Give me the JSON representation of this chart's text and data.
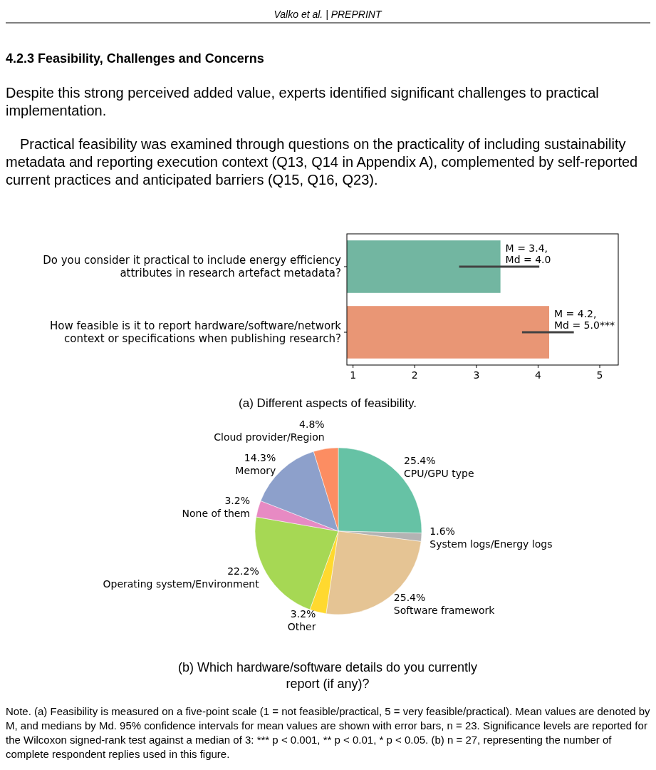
{
  "chart_data": [
    {
      "type": "bar",
      "orientation": "horizontal",
      "categories": [
        "Do you consider it practical to include energy efficiency attributes in research artefact metadata?",
        "How feasible is it to report hardware/software/network context or specifications when publishing research?"
      ],
      "values": [
        3.39,
        4.18
      ],
      "colors": [
        "#72b6a1",
        "#e99675"
      ],
      "errors": [
        [
          2.72,
          4.02
        ],
        [
          3.74,
          4.58
        ]
      ],
      "xlim": [
        0.9,
        5.3
      ],
      "xticks": [
        1,
        2,
        3,
        4,
        5
      ],
      "xlabel": "(a) Different aspects of feasibility.",
      "annotations": [
        "Valko et al.  |  PREPRINT",
        "4.2.3  Feasibility, Challenges and Concerns",
        "Despite this strong perceived added value, experts identified significant challenges to practical implementation.",
        "Practical feasibility was examined through questions on the practicality of including sustainability metadata and reporting execution context (Q13, Q14 in Appendix A), complemented by self-reported current practices and anticipated barriers (Q15, Q16, Q23).",
        {
          "text": "M = 3.4,\nMd = 4.0",
          "x": 3.39,
          "y": "Do you consider it practical to include energy efficiency attributes in research artefact metadata?"
        },
        {
          "text": "M = 4.2,\nMd = 5.0***",
          "x": 4.18,
          "y": "How feasible is it to report hardware/software/network context or specifications when publishing research?"
        }
      ]
    },
    {
      "type": "pie",
      "categories": [
        "CPU/GPU type",
        "System logs/Energy logs",
        "Software framework",
        "Other",
        "Operating system/Environment",
        "None of them",
        "Memory",
        "Cloud provider/Region"
      ],
      "values": [
        25.4,
        1.6,
        25.4,
        3.2,
        22.2,
        3.2,
        14.3,
        4.8
      ],
      "value_labels": [
        "25.4%",
        "1.6%",
        "25.4%",
        "3.2%",
        "22.2%",
        "3.2%",
        "14.3%",
        "4.8%"
      ],
      "colors": [
        "#66c2a5",
        "#b3b3b3",
        "#e5c494",
        "#ffd92f",
        "#a6d854",
        "#e78ac3",
        "#8da0cb",
        "#fc8d62"
      ],
      "xlabel": "(b) Which hardware/software details do you currently report (if any)?",
      "annotations": [
        "Note. (a) Feasibility is measured on a five-point scale (1 = not feasible/practical, 5 = very feasible/practical). Mean values are denoted by M, and medians by Md. 95% confidence intervals for mean values are shown with error bars, n = 23. Significance levels are reported for the Wilcoxon signed-rank test against a median of 3: *** p < 0.001, ** p < 0.01, * p < 0.05. (b) n = 27, representing the number of complete respondent replies used in this figure."
      ]
    }
  ]
}
